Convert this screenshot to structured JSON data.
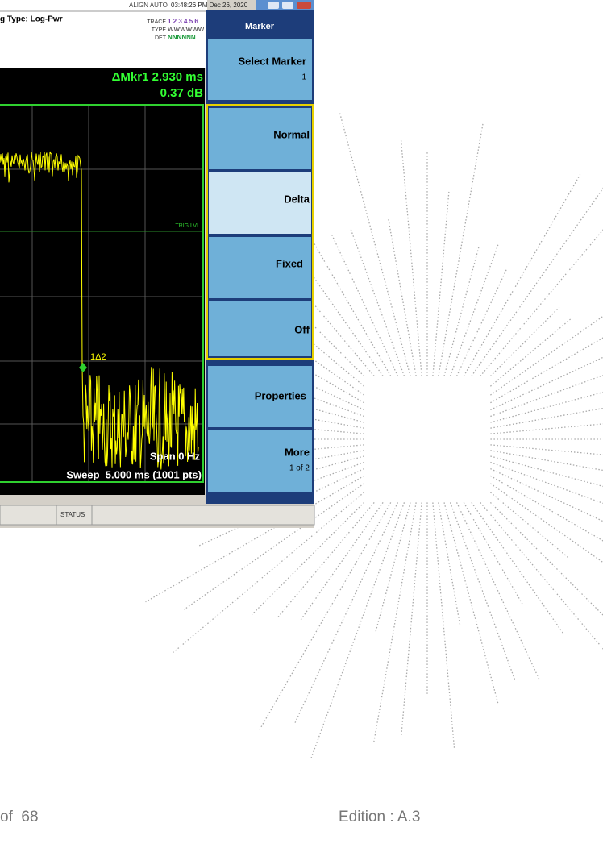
{
  "screenshot": {
    "status_bar": {
      "align": "ALIGN AUTO",
      "datetime": "03:48:26 PM Dec 26, 2020",
      "avg_type": "g Type: Log-Pwr",
      "trace_label": "TRACE",
      "trace_numbers": "1 2 3 4 5 6",
      "type_label": "TYPE",
      "type_values": "WWWWWW",
      "det_label": "DET",
      "det_values": "NNNNNN"
    },
    "readout": {
      "line1": "ΔMkr1 2.930 ms",
      "line2": "0.37 dB"
    },
    "plot": {
      "trig_label": "TRIG LVL",
      "marker_label": "1Δ2",
      "span": "Span 0 Hz",
      "sweep": "Sweep  5.000 ms (1001 pts)"
    },
    "status": "STATUS",
    "menu": {
      "title": "Marker",
      "select": "Select Marker",
      "select_value": "1",
      "normal": "Normal",
      "delta": "Delta",
      "fixed": "Fixed",
      "off": "Off",
      "properties": "Properties",
      "more": "More",
      "more_page": "1 of 2"
    }
  },
  "footer": {
    "page": "of  68",
    "edition": "Edition : A.3"
  }
}
